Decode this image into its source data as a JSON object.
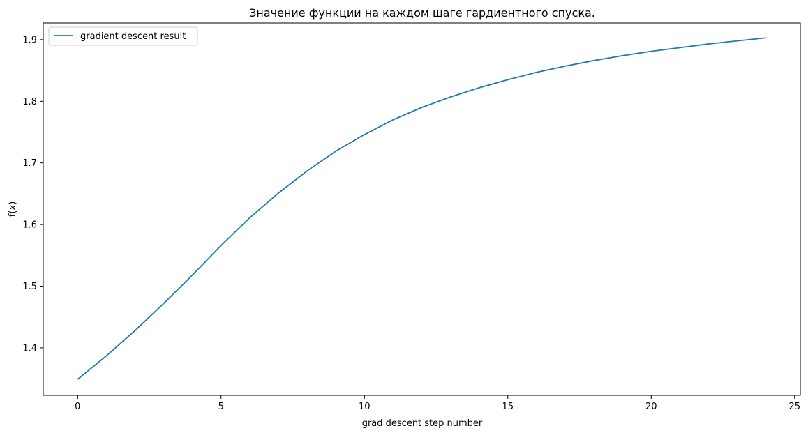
{
  "chart_data": {
    "type": "line",
    "title": "Значение функции на каждом шаге гардиентного спуска.",
    "xlabel": "grad descent step number",
    "ylabel_prefix": "f(",
    "ylabel_var": "x",
    "ylabel_suffix": ")",
    "xlim": [
      -1.2,
      25.2
    ],
    "ylim": [
      1.323,
      1.927
    ],
    "xticks": [
      0,
      5,
      10,
      15,
      20,
      25
    ],
    "yticks": [
      1.4,
      1.5,
      1.6,
      1.7,
      1.8,
      1.9
    ],
    "xtick_labels": [
      "0",
      "5",
      "10",
      "15",
      "20",
      "25"
    ],
    "ytick_labels": [
      "1.4",
      "1.5",
      "1.6",
      "1.7",
      "1.8",
      "1.9"
    ],
    "grid": false,
    "legend_position": "top-left",
    "series": [
      {
        "name": "gradient descent result",
        "color": "#1f77b4",
        "x": [
          0,
          1,
          2,
          3,
          4,
          5,
          6,
          7,
          8,
          9,
          10,
          11,
          12,
          13,
          14,
          15,
          16,
          17,
          18,
          19,
          20,
          21,
          22,
          23,
          24
        ],
        "y": [
          1.349,
          1.387,
          1.428,
          1.472,
          1.518,
          1.566,
          1.611,
          1.651,
          1.687,
          1.719,
          1.746,
          1.77,
          1.79,
          1.807,
          1.822,
          1.835,
          1.847,
          1.857,
          1.866,
          1.874,
          1.881,
          1.887,
          1.893,
          1.898,
          1.903
        ]
      }
    ]
  }
}
